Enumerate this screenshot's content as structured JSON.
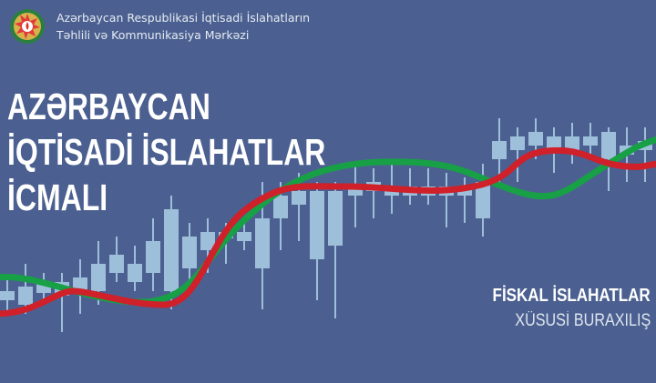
{
  "header": {
    "org_line1": "Azərbaycan Respublikasi İqtisadi İslahatların",
    "org_line2": "Təhlili və Kommunikasiya Mərkəzi",
    "logo_icon": "azerbaijan-emblem-icon"
  },
  "title": {
    "line1": "AZƏRBAYCAN",
    "line2": "İQTİSADİ İSLAHATLAR",
    "line3": "İCMALI"
  },
  "subtitle": {
    "line1": "FİSKAL İSLAHATLAR",
    "line2": "XÜSUSİ BURAXILIŞ"
  },
  "colors": {
    "background": "#4b6090",
    "candles": "#9ebfd9",
    "green_line": "#17a045",
    "red_line": "#d0202a",
    "text": "#ffffff"
  }
}
